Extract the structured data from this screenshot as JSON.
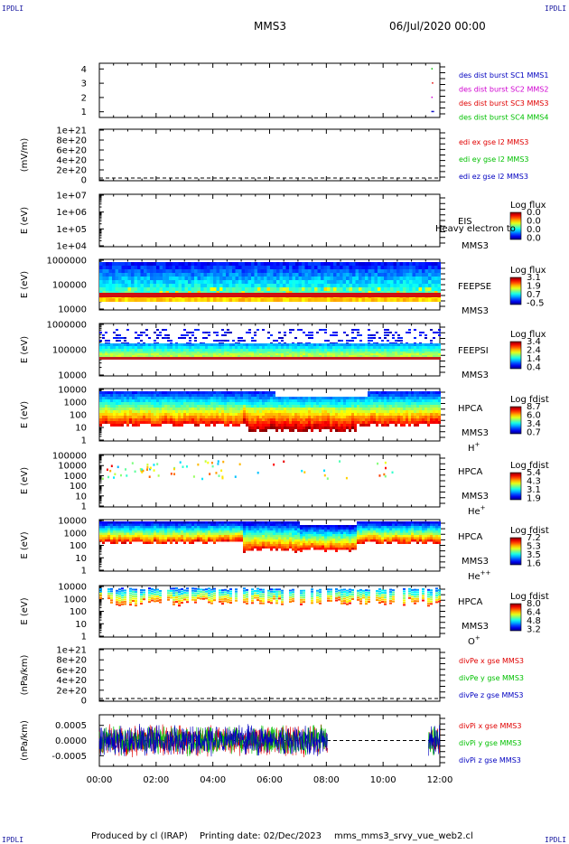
{
  "corner_label": "IPDLI",
  "header": {
    "spacecraft": "MMS3",
    "date": "06/Jul/2020 00:00"
  },
  "footer": {
    "producer": "Produced by cl (IRAP)",
    "printing_date": "Printing date: 02/Dec/2023",
    "script": "mms_mms3_srvy_vue_web2.cl"
  },
  "colors": {
    "red": "#e00000",
    "green": "#00c000",
    "blue": "#0000c0",
    "magenta": "#d000d0"
  },
  "chart_data": [
    {
      "id": "dist-burst",
      "type": "scatter",
      "yticks": [
        "1",
        "2",
        "3",
        "4"
      ],
      "ylim": [
        0.6,
        4.4
      ],
      "ylabel": "",
      "series": [
        {
          "name": "des dist burst SC1 MMS1",
          "color": "#0000c0",
          "x": [
            11.7,
            11.75
          ],
          "y": [
            1,
            1
          ]
        },
        {
          "name": "des dist burst SC2 MMS2",
          "color": "#d000d0",
          "x": [
            11.7
          ],
          "y": [
            2
          ]
        },
        {
          "name": "des dist burst SC3 MMS3",
          "color": "#e00000",
          "x": [
            11.72
          ],
          "y": [
            3
          ]
        },
        {
          "name": "des dist burst SC4 MMS4",
          "color": "#00c000",
          "x": [
            11.7
          ],
          "y": [
            4
          ]
        }
      ]
    },
    {
      "id": "edi-e",
      "type": "line",
      "ylabel": "(mV/m)",
      "yticks": [
        "1e+21",
        "8e+20",
        "6e+20",
        "4e+20",
        "2e+20",
        "0"
      ],
      "zero_dashed": true,
      "series": [
        {
          "name": "edi ex gse l2 MMS3",
          "color": "#e00000"
        },
        {
          "name": "edi ey gse l2 MMS3",
          "color": "#00c000"
        },
        {
          "name": "edi ez gse l2 MMS3",
          "color": "#0000c0"
        }
      ]
    },
    {
      "id": "eis",
      "type": "heatmap",
      "ylabel": "E (eV)",
      "yticks": [
        "1e+07",
        "1e+06",
        "1e+05",
        "1e+04"
      ],
      "instrument": "EIS",
      "spacecraft": "MMS3",
      "overlay_text": "Heavy electron to",
      "colorbar_title": "Log flux",
      "colorbar_ticks": [
        "0.0",
        "0.0",
        "0.0",
        "0.0"
      ]
    },
    {
      "id": "feeps-e",
      "type": "heatmap",
      "ylabel": "E (eV)",
      "yticks": [
        "1000000",
        "100000",
        "10000"
      ],
      "instrument": "FEEPSE",
      "spacecraft": "MMS3",
      "colorbar_title": "Log flux",
      "colorbar_ticks": [
        "3.1",
        "1.9",
        "0.7",
        "-0.5"
      ]
    },
    {
      "id": "feeps-i",
      "type": "heatmap",
      "ylabel": "E (eV)",
      "yticks": [
        "1000000",
        "100000",
        "10000"
      ],
      "instrument": "FEEPSI",
      "spacecraft": "MMS3",
      "colorbar_title": "Log flux",
      "colorbar_ticks": [
        "3.4",
        "2.4",
        "1.4",
        "0.4"
      ]
    },
    {
      "id": "hpca-h",
      "type": "heatmap",
      "ylabel": "E (eV)",
      "yticks": [
        "10000",
        "1000",
        "100",
        "10",
        "1"
      ],
      "instrument": "HPCA",
      "spacecraft": "MMS3",
      "species": "H",
      "species_charge": "+",
      "colorbar_title": "Log fdist",
      "colorbar_ticks": [
        "8.7",
        "6.0",
        "3.4",
        "0.7"
      ]
    },
    {
      "id": "hpca-he1",
      "type": "heatmap",
      "ylabel": "E (eV)",
      "yticks": [
        "100000",
        "10000",
        "1000",
        "100",
        "10",
        "1"
      ],
      "instrument": "HPCA",
      "spacecraft": "MMS3",
      "species": "He",
      "species_charge": "+",
      "colorbar_title": "Log fdist",
      "colorbar_ticks": [
        "5.4",
        "4.3",
        "3.1",
        "1.9"
      ]
    },
    {
      "id": "hpca-he2",
      "type": "heatmap",
      "ylabel": "E (eV)",
      "yticks": [
        "10000",
        "1000",
        "100",
        "10",
        "1"
      ],
      "instrument": "HPCA",
      "spacecraft": "MMS3",
      "species": "He",
      "species_charge": "++",
      "colorbar_title": "Log fdist",
      "colorbar_ticks": [
        "7.2",
        "5.3",
        "3.5",
        "1.6"
      ]
    },
    {
      "id": "hpca-o",
      "type": "heatmap",
      "ylabel": "E (eV)",
      "yticks": [
        "10000",
        "1000",
        "100",
        "10",
        "1"
      ],
      "instrument": "HPCA",
      "spacecraft": "MMS3",
      "species": "O",
      "species_charge": "+",
      "colorbar_title": "Log fdist",
      "colorbar_ticks": [
        "8.0",
        "6.4",
        "4.8",
        "3.2"
      ]
    },
    {
      "id": "divpe",
      "type": "line",
      "ylabel": "(nPa/km)",
      "yticks": [
        "1e+21",
        "8e+20",
        "6e+20",
        "4e+20",
        "2e+20",
        "0"
      ],
      "zero_dashed": true,
      "series": [
        {
          "name": "divPe x gse MMS3",
          "color": "#e00000"
        },
        {
          "name": "divPe y gse MMS3",
          "color": "#00c000"
        },
        {
          "name": "divPe z gse MMS3",
          "color": "#0000c0"
        }
      ]
    },
    {
      "id": "divpi",
      "type": "line",
      "ylabel": "(nPa/km)",
      "yticks": [
        "0.0005",
        "0.0000",
        "-0.0005"
      ],
      "ylim": [
        -0.00085,
        0.00085
      ],
      "zero_dashed": true,
      "data_coverage_hours": [
        [
          0,
          8.05
        ],
        [
          11.6,
          12
        ]
      ],
      "series": [
        {
          "name": "divPi x gse MMS3",
          "color": "#e00000"
        },
        {
          "name": "divPi y gse MMS3",
          "color": "#00c000"
        },
        {
          "name": "divPi z gse MMS3",
          "color": "#0000c0"
        }
      ]
    }
  ],
  "xaxis": {
    "ticks": [
      "00:00",
      "02:00",
      "04:00",
      "06:00",
      "08:00",
      "10:00",
      "12:00"
    ],
    "range_hours": [
      0,
      12
    ]
  }
}
